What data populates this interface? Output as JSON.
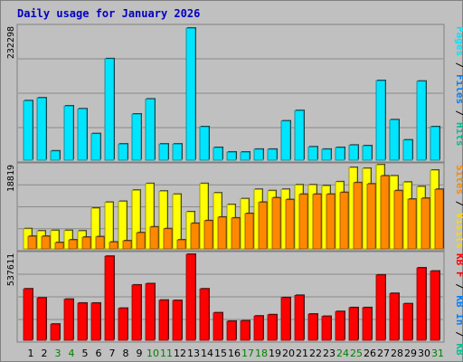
{
  "chart_data": {
    "type": "bar",
    "title": "Daily usage for January 2026",
    "x": [
      "1",
      "2",
      "3",
      "4",
      "5",
      "6",
      "7",
      "8",
      "9",
      "10",
      "11",
      "12",
      "13",
      "14",
      "15",
      "16",
      "17",
      "18",
      "19",
      "20",
      "21",
      "22",
      "23",
      "24",
      "25",
      "26",
      "27",
      "28",
      "29",
      "30",
      "31"
    ],
    "weekend_days": [
      3,
      4,
      10,
      11,
      17,
      18,
      24,
      25,
      31
    ],
    "panels": [
      {
        "name": "Pages / Files / Hits",
        "max_label": "232298",
        "ylim": [
          0,
          232298
        ],
        "series": [
          {
            "name": "Hits",
            "color": "#00e5ff",
            "values": [
              103000,
              108000,
              16000,
              94000,
              89000,
              46000,
              176000,
              28000,
              80000,
              106000,
              28000,
              28000,
              229000,
              58000,
              22000,
              14000,
              14000,
              19000,
              19000,
              68000,
              86000,
              23000,
              19000,
              22000,
              26000,
              25000,
              138000,
              70000,
              35000,
              137000,
              58000
            ]
          }
        ]
      },
      {
        "name": "Visits / Sites",
        "max_label": "18819",
        "ylim": [
          0,
          18819
        ],
        "series": [
          {
            "name": "Visits",
            "color": "#ffff00",
            "values": [
              4500,
              4000,
              4100,
              4100,
              4000,
              9100,
              10400,
              10600,
              13100,
              14600,
              12900,
              12200,
              8300,
              14600,
              12500,
              9900,
              11200,
              13300,
              13000,
              13300,
              14300,
              14300,
              14100,
              15000,
              18200,
              18000,
              18800,
              16300,
              14900,
              13900,
              17600
            ]
          },
          {
            "name": "Sites",
            "color": "#ff8800",
            "values": [
              2800,
              2800,
              1400,
              2000,
              2600,
              2700,
              1500,
              1800,
              3600,
              4900,
              4500,
              2000,
              5700,
              6300,
              7100,
              6900,
              7900,
              10400,
              11400,
              11000,
              12200,
              12200,
              12200,
              12600,
              14800,
              14500,
              16300,
              13000,
              11100,
              11300,
              13300
            ]
          }
        ]
      },
      {
        "name": "KB F / KB In / KB Out",
        "max_label": "537611",
        "ylim": [
          0,
          537611
        ],
        "series": [
          {
            "name": "KB F",
            "color": "#ff0000",
            "values": [
              318000,
              262000,
              100000,
              254000,
              230000,
              230000,
              520000,
              198000,
              342000,
              350000,
              248000,
              246000,
              532000,
              318000,
              170000,
              118000,
              120000,
              150000,
              158000,
              264000,
              278000,
              162000,
              148000,
              178000,
              202000,
              202000,
              404000,
              290000,
              226000,
              448000,
              428000
            ]
          }
        ]
      }
    ],
    "right_labels": [
      {
        "parts": [
          {
            "t": "Pages",
            "c": "#00e5ff"
          },
          {
            "t": " / ",
            "c": "#000000"
          },
          {
            "t": "Files",
            "c": "#0080ff"
          },
          {
            "t": " / ",
            "c": "#000000"
          },
          {
            "t": "Hits",
            "c": "#00c090"
          }
        ]
      },
      {
        "parts": [
          {
            "t": "Sites",
            "c": "#ff8800"
          },
          {
            "t": " / ",
            "c": "#000000"
          },
          {
            "t": "Visits",
            "c": "#ffd800"
          }
        ]
      },
      {
        "parts": [
          {
            "t": "KB F",
            "c": "#ff0000"
          },
          {
            "t": " / ",
            "c": "#000000"
          },
          {
            "t": "KB In",
            "c": "#0080ff"
          },
          {
            "t": " / ",
            "c": "#000000"
          },
          {
            "t": "KB Out",
            "c": "#00c090"
          }
        ]
      }
    ],
    "colors": {
      "panel_bg": "#c0c0c0",
      "frame": "#808080",
      "gridline": "#8a8a8a",
      "weekday_label": "#000000",
      "weekend_label": "#008000"
    }
  }
}
